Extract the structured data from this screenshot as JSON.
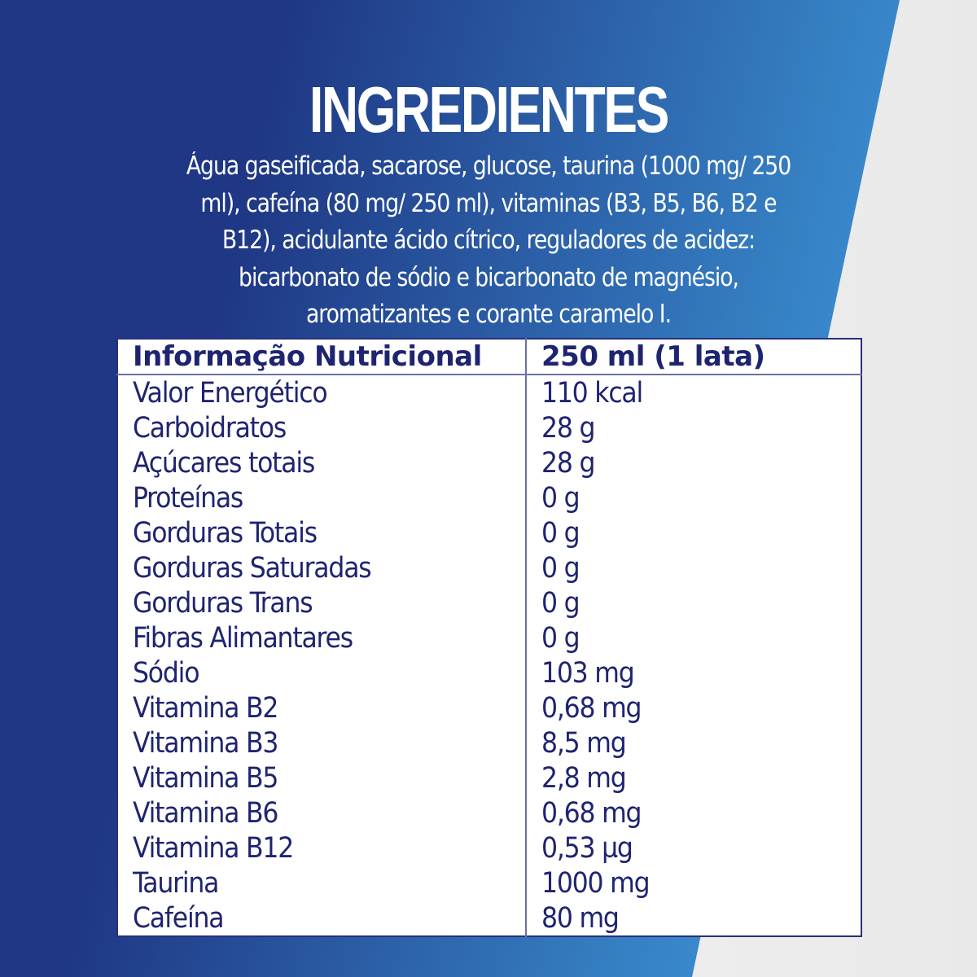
{
  "colors": {
    "blue_dark": "#1f3784",
    "blue_light": "#3a8ed0",
    "text_navy": "#1f2470",
    "background": "#efefef"
  },
  "title": "INGREDIENTES",
  "ingredients": "Água gaseificada, sacarose, glucose, taurina (1000 mg/ 250 ml), cafeína (80 mg/ 250 ml), vitaminas (B3, B5, B6, B2 e B12), acidulante ácido cítrico, reguladores de acidez: bicarbonato de sódio e bicarbonato de magnésio, aromatizantes e corante caramelo I.",
  "table": {
    "header": [
      "Informação Nutricional",
      "250 ml (1 lata)"
    ],
    "rows": [
      [
        "Valor Energético",
        "110 kcal"
      ],
      [
        "Carboidratos",
        "28 g"
      ],
      [
        "Açúcares totais",
        "28 g"
      ],
      [
        "Proteínas",
        "0 g"
      ],
      [
        "Gorduras Totais",
        "0 g"
      ],
      [
        "Gorduras Saturadas",
        "0 g"
      ],
      [
        "Gorduras Trans",
        "0 g"
      ],
      [
        "Fibras Alimantares",
        "0 g"
      ],
      [
        "Sódio",
        "103 mg"
      ],
      [
        "Vitamina B2",
        "0,68 mg"
      ],
      [
        "Vitamina B3",
        "8,5 mg"
      ],
      [
        "Vitamina B5",
        "2,8 mg"
      ],
      [
        "Vitamina B6",
        "0,68 mg"
      ],
      [
        "Vitamina B12",
        "0,53 µg"
      ],
      [
        "Taurina",
        "1000 mg"
      ],
      [
        "Cafeína",
        "80 mg"
      ]
    ]
  }
}
